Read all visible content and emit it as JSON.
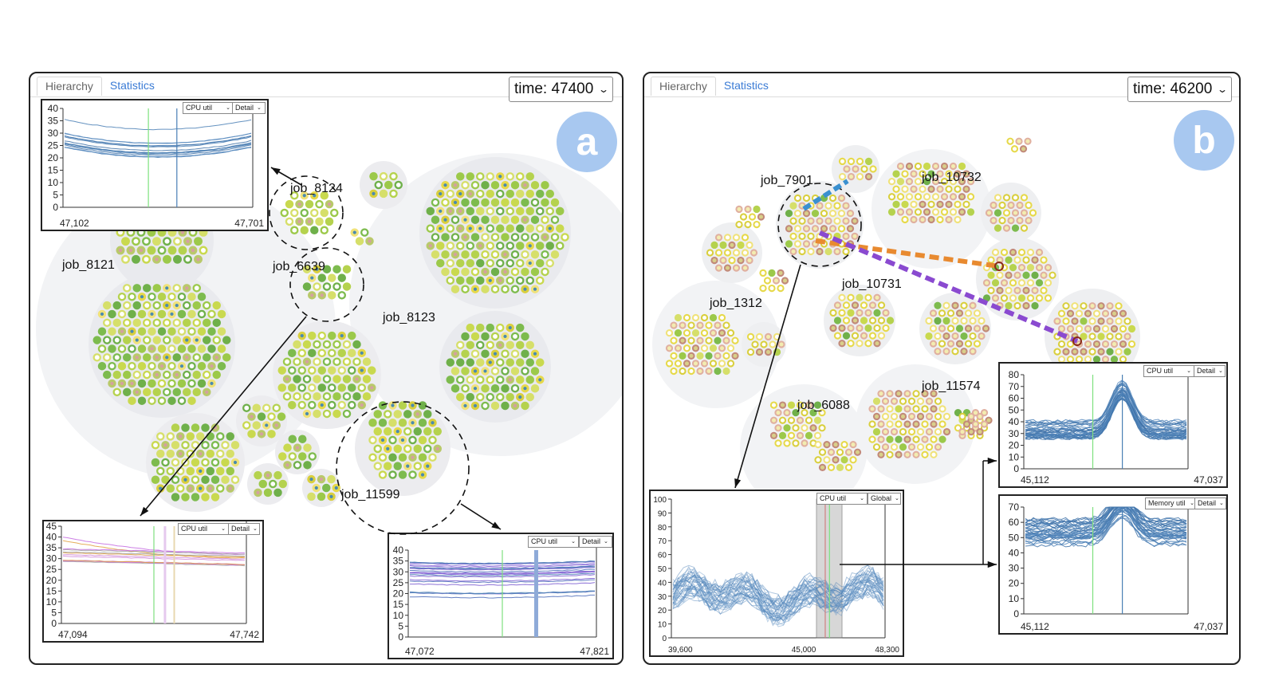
{
  "colors": {
    "accent": "#3a7bd5",
    "badge": "#a8c8f0",
    "line": "#4a7fb5"
  },
  "panel_a": {
    "tabs": [
      "Hierarchy",
      "Statistics"
    ],
    "time": "time: 47400",
    "badge": "a",
    "jobs": [
      "job_8124",
      "job_8121",
      "job_6639",
      "job_8123",
      "job_11599"
    ],
    "inset1": {
      "metric": "CPU util",
      "mode": "Detail",
      "y_ticks": [
        "40",
        "35",
        "30",
        "25",
        "20",
        "15",
        "10",
        "5",
        "0"
      ],
      "x_left": "47,102",
      "x_right": "47,701"
    },
    "inset2": {
      "metric": "CPU util",
      "mode": "Detail",
      "y_ticks": [
        "45",
        "40",
        "35",
        "30",
        "25",
        "20",
        "15",
        "10",
        "5",
        "0"
      ],
      "x_left": "47,094",
      "x_right": "47,742"
    },
    "inset3": {
      "metric": "CPU util",
      "mode": "Detail",
      "y_ticks": [
        "40",
        "35",
        "30",
        "25",
        "20",
        "15",
        "10",
        "5",
        "0"
      ],
      "x_left": "47,072",
      "x_right": "47,821"
    }
  },
  "panel_b": {
    "tabs": [
      "Hierarchy",
      "Statistics"
    ],
    "time": "time: 46200",
    "badge": "b",
    "jobs": [
      "job_7901",
      "job_10732",
      "job_10731",
      "job_1312",
      "job_6088",
      "job_11574"
    ],
    "inset_global": {
      "metric": "CPU util",
      "mode": "Global",
      "y_ticks": [
        "100",
        "90",
        "80",
        "70",
        "60",
        "50",
        "40",
        "30",
        "20",
        "10",
        "0"
      ],
      "x_left": "39,600",
      "x_mid": "45,000",
      "x_right": "48,300"
    },
    "inset_cpu": {
      "metric": "CPU util",
      "mode": "Detail",
      "y_ticks": [
        "80",
        "70",
        "60",
        "50",
        "40",
        "30",
        "20",
        "10",
        "0"
      ],
      "x_left": "45,112",
      "x_right": "47,037"
    },
    "inset_mem": {
      "metric": "Memory util",
      "mode": "Detail",
      "y_ticks": [
        "70",
        "60",
        "50",
        "40",
        "30",
        "20",
        "10",
        "0"
      ],
      "x_left": "45,112",
      "x_right": "47,037"
    }
  }
}
